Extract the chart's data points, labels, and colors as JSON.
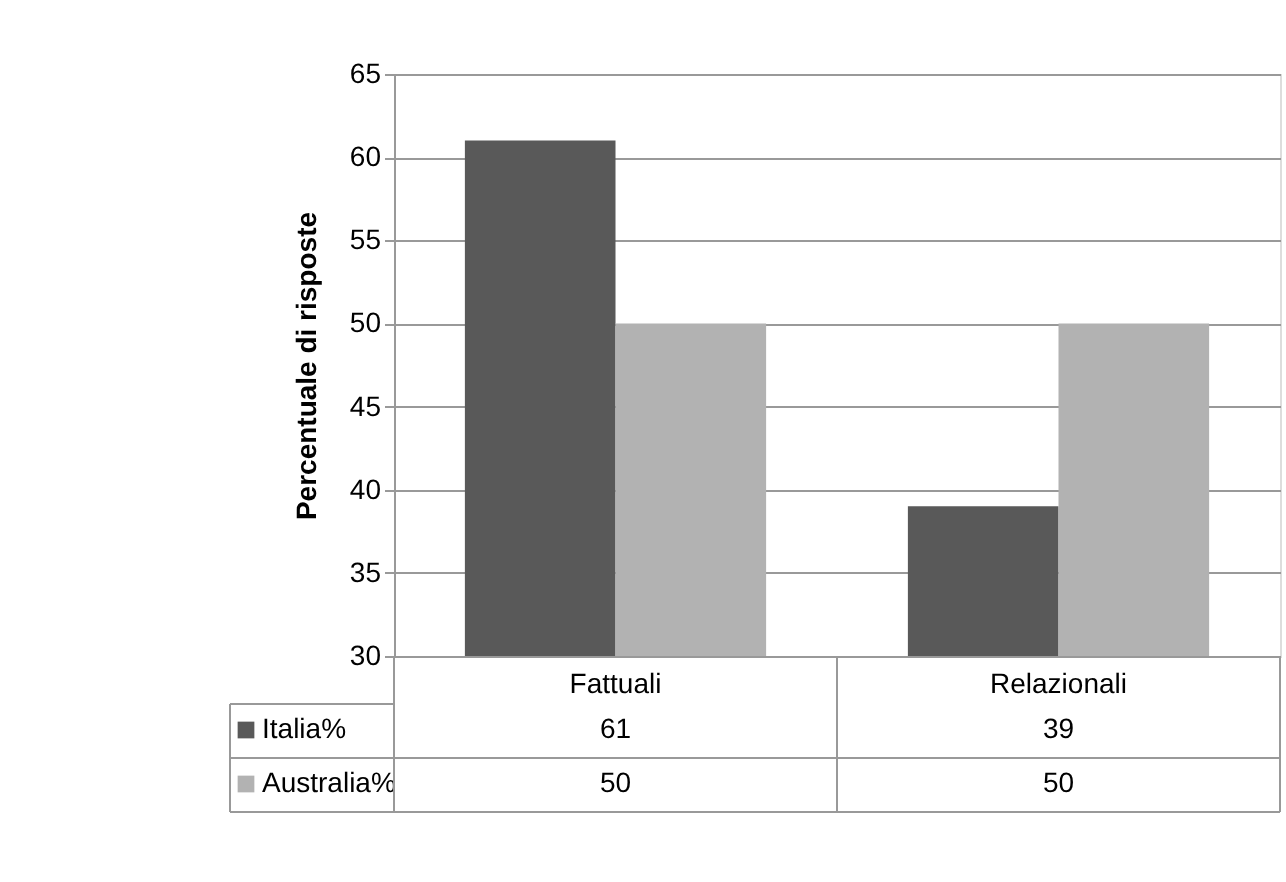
{
  "chart_data": {
    "type": "bar",
    "ylabel": "Percentuale di risposte",
    "categories": [
      "Fattuali",
      "Relazionali"
    ],
    "series": [
      {
        "name": "Italia%",
        "color": "#595959",
        "values": [
          61,
          39
        ]
      },
      {
        "name": "Australia%",
        "color": "#b2b2b2",
        "values": [
          50,
          50
        ]
      }
    ],
    "ylim": [
      30,
      65
    ],
    "yticks": [
      30,
      35,
      40,
      45,
      50,
      55,
      60,
      65
    ],
    "grid": "y",
    "legend": "bottom",
    "data_labels": true
  }
}
